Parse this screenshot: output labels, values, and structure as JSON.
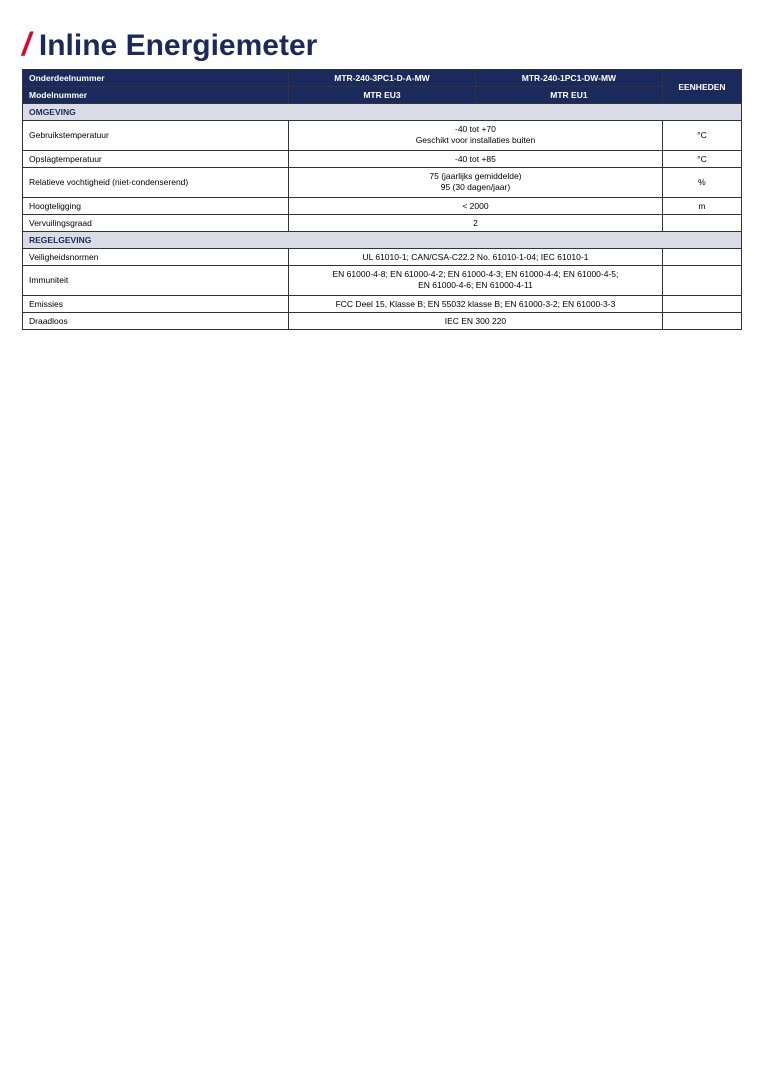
{
  "colors": {
    "header_bg": "#1b2a5c",
    "header_fg": "#ffffff",
    "section_bg": "#d9dce4",
    "section_fg": "#1b2a5c",
    "slash": "#e4002b",
    "title": "#1b2a5c",
    "border": "#333333"
  },
  "title": "Inline Energiemeter",
  "header": {
    "row1": {
      "label": "Onderdeelnummer",
      "val1": "MTR-240-3PC1-D-A-MW",
      "val2": "MTR-240-1PC1-DW-MW",
      "unit": "EENHEDEN"
    },
    "row2": {
      "label": "Modelnummer",
      "val1": "MTR EU3",
      "val2": "MTR EU1"
    }
  },
  "sections": {
    "s1": {
      "title": "OMGEVING",
      "rows": {
        "r1": {
          "label": "Gebruikstemperatuur",
          "value_line1": "-40 tot +70",
          "value_line2": "Geschikt voor installaties buiten",
          "unit": "°C"
        },
        "r2": {
          "label": "Opslagtemperatuur",
          "value": "-40 tot +85",
          "unit": "°C"
        },
        "r3": {
          "label": "Relatieve vochtigheid (niet-condenserend)",
          "value_line1": "75 (jaarlijks gemiddelde)",
          "value_line2": "95 (30 dagen/jaar)",
          "unit": "%"
        },
        "r4": {
          "label": "Hoogteligging",
          "value": "< 2000",
          "unit": "m"
        },
        "r5": {
          "label": "Vervuilingsgraad",
          "value": "2",
          "unit": ""
        }
      }
    },
    "s2": {
      "title": "REGELGEVING",
      "rows": {
        "r1": {
          "label": "Veiligheidsnormen",
          "value": "UL 61010-1; CAN/CSA-C22.2 No. 61010-1-04; IEC 61010-1",
          "unit": ""
        },
        "r2": {
          "label": "Immuniteit",
          "value_line1": "EN 61000-4-8; EN 61000-4-2; EN 61000-4-3; EN 61000-4-4; EN 61000-4-5;",
          "value_line2": "EN 61000-4-6; EN 61000-4-11",
          "unit": ""
        },
        "r3": {
          "label": "Emissies",
          "value": "FCC Deel 15, Klasse B; EN 55032 klasse B; EN 61000-3-2; EN 61000-3-3",
          "unit": ""
        },
        "r4": {
          "label": "Draadloos",
          "value": "IEC EN 300 220",
          "unit": ""
        }
      }
    }
  }
}
